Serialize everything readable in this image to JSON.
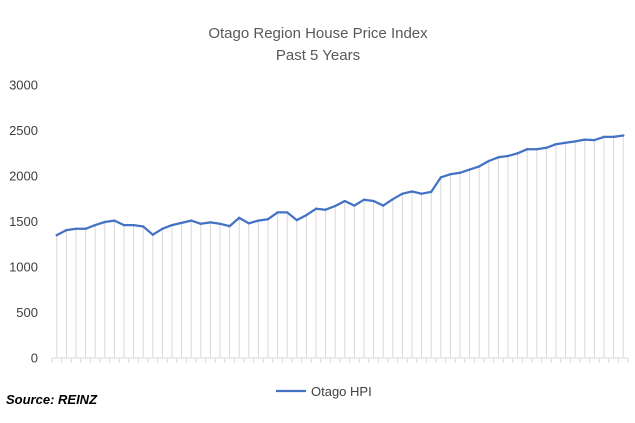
{
  "chart_data": {
    "type": "line",
    "title": "Otago Region House Price Index",
    "subtitle": "Past 5 Years",
    "xlabel": "",
    "ylabel": "",
    "ylim": [
      0,
      3000
    ],
    "y_ticks": [
      "0",
      "500",
      "1000",
      "1500",
      "2000",
      "2500",
      "3000"
    ],
    "legend_position": "bottom",
    "grid": false,
    "series": [
      {
        "name": "Otago HPI",
        "color": "#4472C4",
        "values": [
          1350,
          1405,
          1420,
          1420,
          1460,
          1495,
          1510,
          1460,
          1460,
          1445,
          1355,
          1420,
          1460,
          1485,
          1510,
          1475,
          1490,
          1475,
          1450,
          1540,
          1480,
          1510,
          1525,
          1600,
          1600,
          1515,
          1570,
          1640,
          1630,
          1670,
          1725,
          1675,
          1740,
          1725,
          1675,
          1745,
          1805,
          1830,
          1805,
          1825,
          1985,
          2020,
          2035,
          2070,
          2105,
          2165,
          2205,
          2220,
          2250,
          2295,
          2295,
          2310,
          2350,
          2365,
          2380,
          2400,
          2395,
          2430,
          2430,
          2445
        ]
      }
    ]
  },
  "source": "Source:  REINZ"
}
